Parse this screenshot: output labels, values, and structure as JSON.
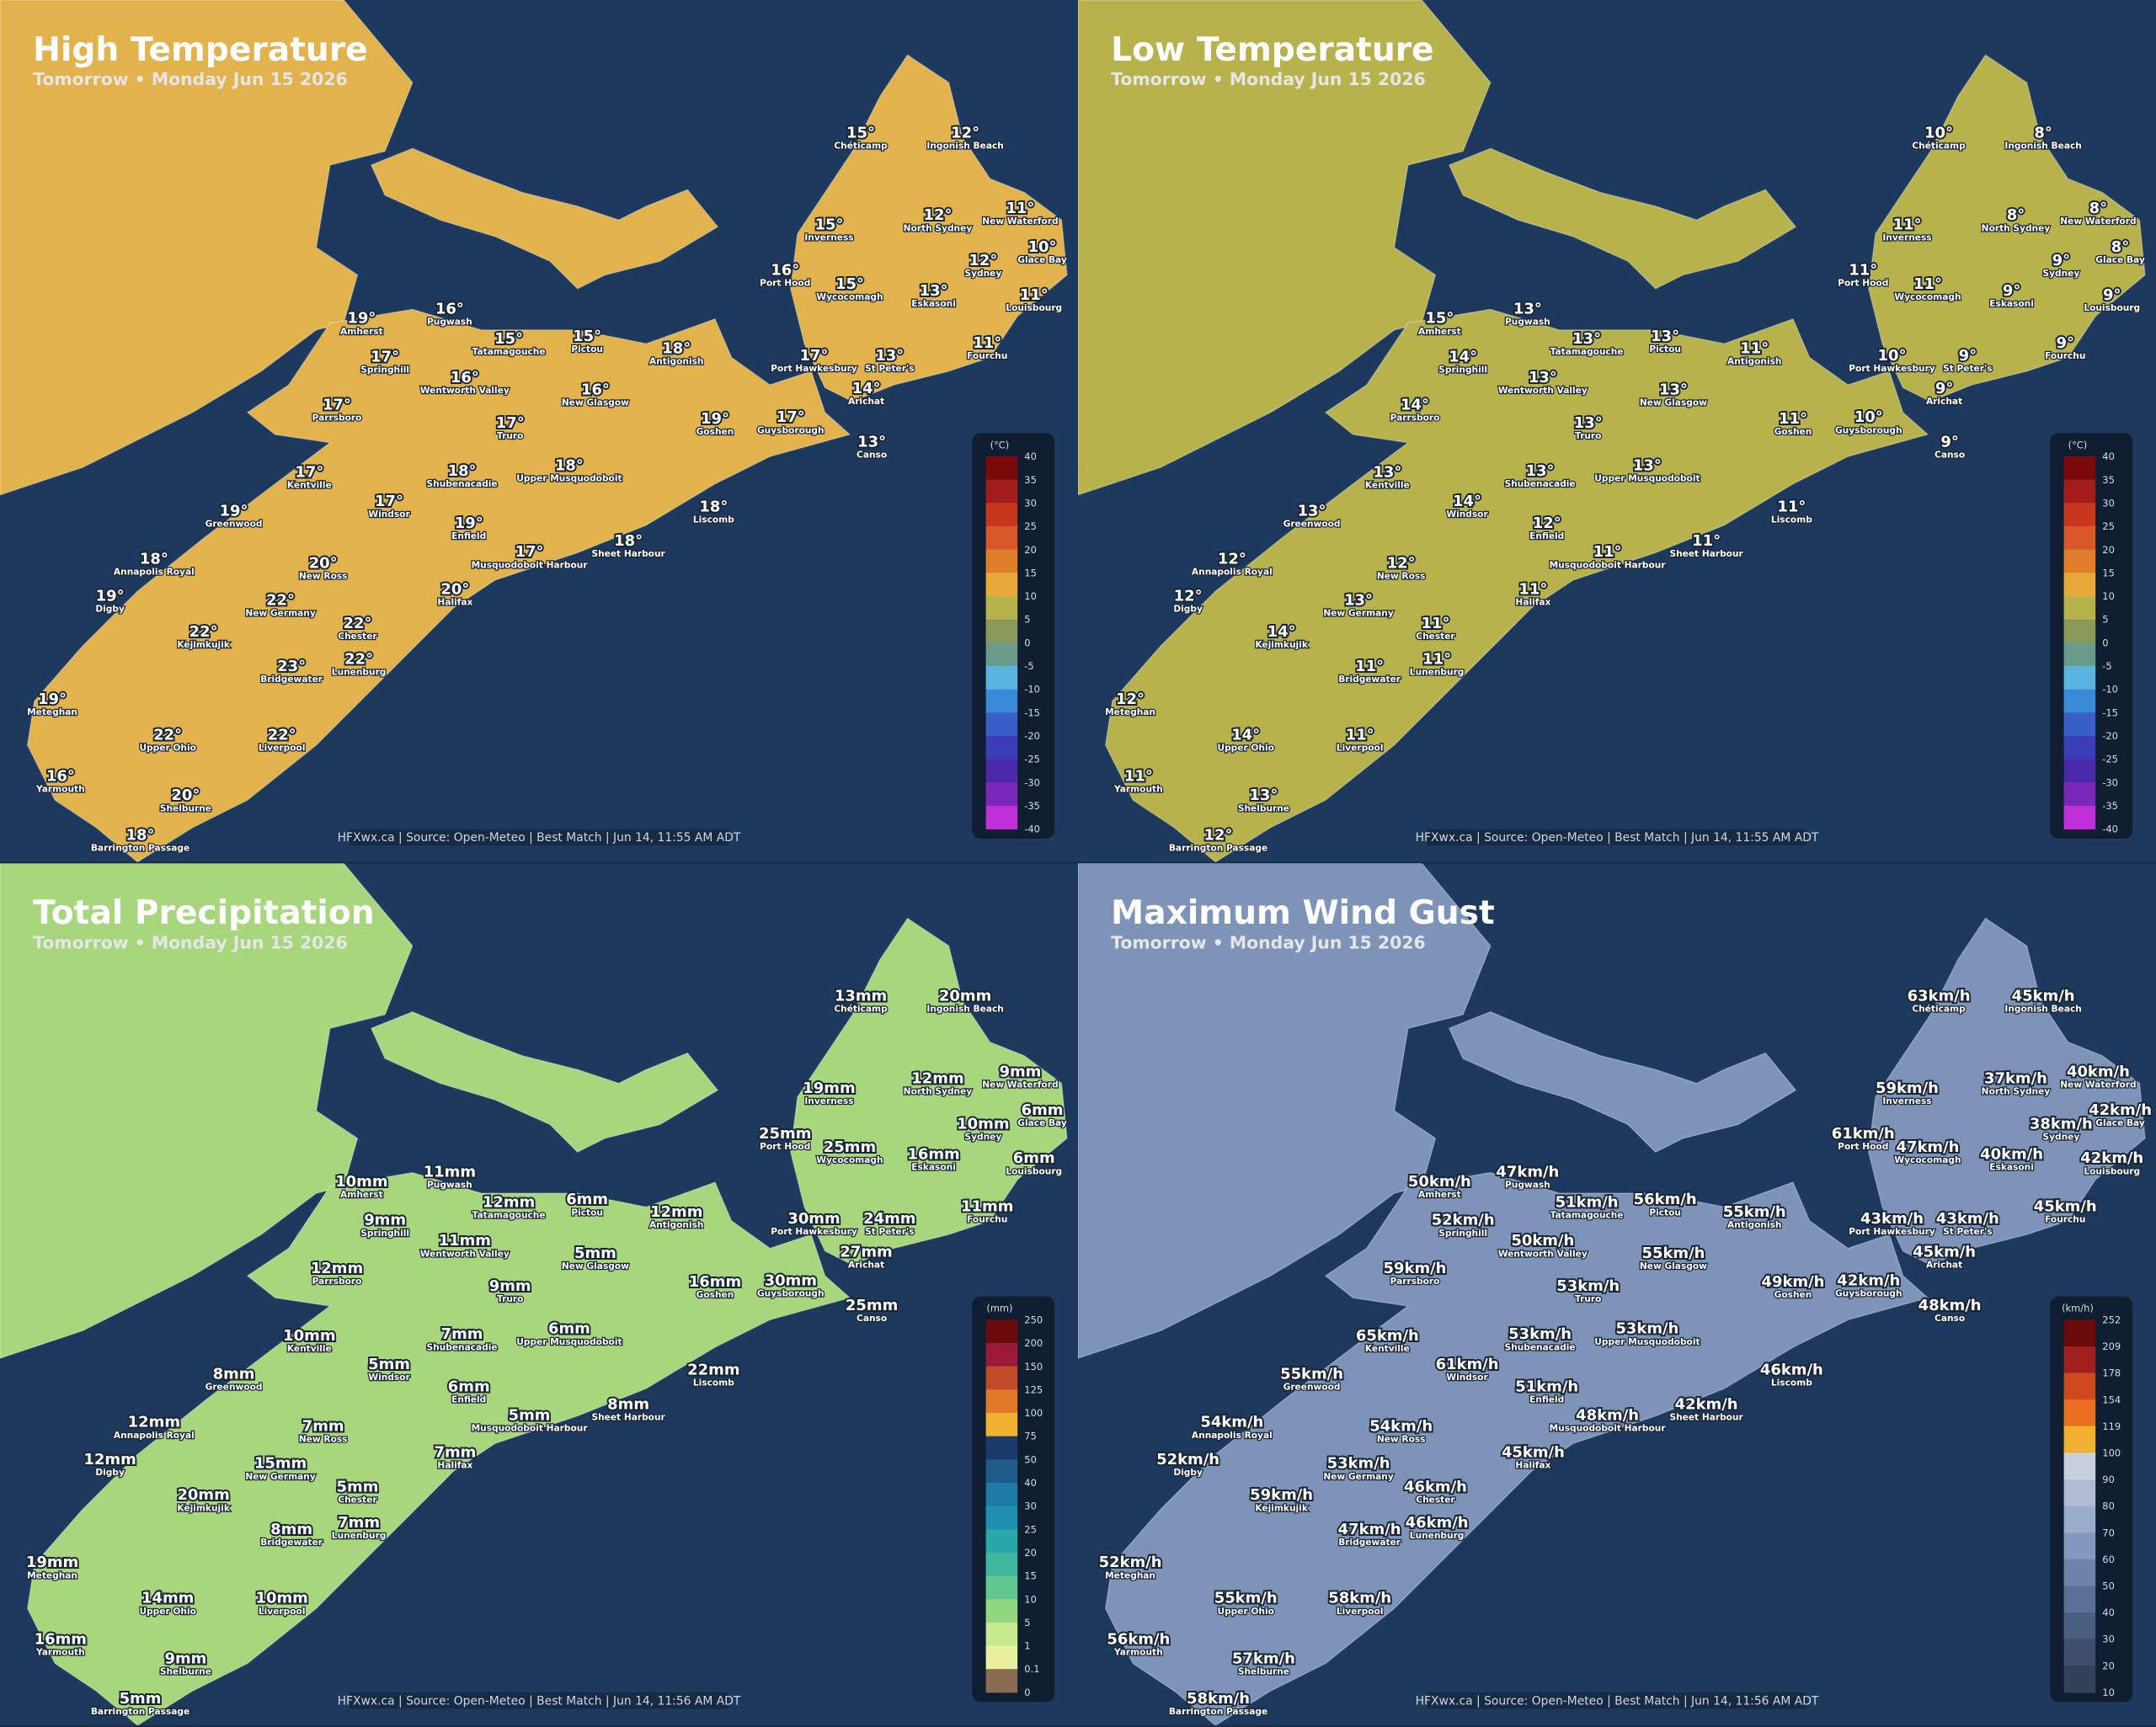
{
  "stations": [
    "Chéticamp",
    "Ingonish Beach",
    "Inverness",
    "North Sydney",
    "New Waterford",
    "Glace Bay",
    "Sydney",
    "Port Hood",
    "Wycocomagh",
    "Eskasoni",
    "Louisbourg",
    "Amherst",
    "Pugwash",
    "Tatamagouche",
    "Pictou",
    "Antigonish",
    "Fourchu",
    "Port Hawkesbury",
    "St Peter's",
    "Springhill",
    "Wentworth Valley",
    "New Glasgow",
    "Arichat",
    "Parrsboro",
    "Goshen",
    "Guysborough",
    "Truro",
    "Canso",
    "Shubenacadie",
    "Upper Musquodoboit",
    "Kentville",
    "Windsor",
    "Liscomb",
    "Greenwood",
    "Enfield",
    "Sheet Harbour",
    "Annapolis Royal",
    "New Ross",
    "Musquodoboit Harbour",
    "Digby",
    "New Germany",
    "Halifax",
    "Chester",
    "Kejimkujik",
    "Lunenburg",
    "Bridgewater",
    "Meteghan",
    "Upper Ohio",
    "Liverpool",
    "Yarmouth",
    "Shelburne",
    "Barrington Passage"
  ],
  "panels": [
    {
      "title": "High Temperature",
      "subtitle": "Tomorrow • Monday Jun 15 2026",
      "footer": "HFXwx.ca | Source: Open-Meteo | Best Match | Jun 14, 11:55 AM ADT",
      "values": [
        "15°",
        "12°",
        "15°",
        "12°",
        "11°",
        "10°",
        "12°",
        "16°",
        "15°",
        "13°",
        "11°",
        "19°",
        "16°",
        "15°",
        "15°",
        "18°",
        "11°",
        "17°",
        "13°",
        "17°",
        "16°",
        "16°",
        "14°",
        "17°",
        "19°",
        "17°",
        "17°",
        "13°",
        "18°",
        "18°",
        "17°",
        "17°",
        "18°",
        "19°",
        "19°",
        "18°",
        "18°",
        "20°",
        "17°",
        "19°",
        "22°",
        "20°",
        "22°",
        "22°",
        "22°",
        "23°",
        "19°",
        "22°",
        "22°",
        "16°",
        "20°",
        "18°"
      ],
      "legend": {
        "unit": "(°C)",
        "labels": [
          "40",
          "35",
          "30",
          "25",
          "20",
          "15",
          "10",
          "5",
          "0",
          "-5",
          "-10",
          "-15",
          "-20",
          "-25",
          "-30",
          "-35",
          "-40"
        ],
        "colors": [
          "#7a0a0a",
          "#a31c1c",
          "#c8361e",
          "#d9582a",
          "#e07f2a",
          "#e8a93a",
          "#b8b24c",
          "#8a9a5a",
          "#6a9a8a",
          "#5ab4e0",
          "#3a8ad8",
          "#3a5ec8",
          "#3a3eb8",
          "#4a2aa8",
          "#7a28b8",
          "#c030d8"
        ]
      }
    },
    {
      "title": "Low Temperature",
      "subtitle": "Tomorrow • Monday Jun 15 2026",
      "footer": "HFXwx.ca | Source: Open-Meteo | Best Match | Jun 14, 11:55 AM ADT",
      "values": [
        "10°",
        "8°",
        "11°",
        "8°",
        "8°",
        "8°",
        "9°",
        "11°",
        "11°",
        "9°",
        "9°",
        "15°",
        "13°",
        "13°",
        "13°",
        "11°",
        "9°",
        "10°",
        "9°",
        "14°",
        "13°",
        "13°",
        "9°",
        "14°",
        "11°",
        "10°",
        "13°",
        "9°",
        "13°",
        "13°",
        "13°",
        "14°",
        "11°",
        "13°",
        "12°",
        "11°",
        "12°",
        "12°",
        "11°",
        "12°",
        "13°",
        "11°",
        "11°",
        "14°",
        "11°",
        "11°",
        "12°",
        "14°",
        "11°",
        "11°",
        "13°",
        "12°"
      ],
      "legend": {
        "unit": "(°C)",
        "labels": [
          "40",
          "35",
          "30",
          "25",
          "20",
          "15",
          "10",
          "5",
          "0",
          "-5",
          "-10",
          "-15",
          "-20",
          "-25",
          "-30",
          "-35",
          "-40"
        ],
        "colors": [
          "#7a0a0a",
          "#a31c1c",
          "#c8361e",
          "#d9582a",
          "#e07f2a",
          "#e8a93a",
          "#b8b24c",
          "#8a9a5a",
          "#6a9a8a",
          "#5ab4e0",
          "#3a8ad8",
          "#3a5ec8",
          "#3a3eb8",
          "#4a2aa8",
          "#7a28b8",
          "#c030d8"
        ]
      }
    },
    {
      "title": "Total Precipitation",
      "subtitle": "Tomorrow • Monday Jun 15 2026",
      "footer": "HFXwx.ca | Source: Open-Meteo | Best Match | Jun 14, 11:56 AM ADT",
      "values": [
        "13mm",
        "20mm",
        "19mm",
        "12mm",
        "9mm",
        "6mm",
        "10mm",
        "25mm",
        "25mm",
        "16mm",
        "6mm",
        "10mm",
        "11mm",
        "12mm",
        "6mm",
        "12mm",
        "11mm",
        "30mm",
        "24mm",
        "9mm",
        "11mm",
        "5mm",
        "27mm",
        "12mm",
        "16mm",
        "30mm",
        "9mm",
        "25mm",
        "7mm",
        "6mm",
        "10mm",
        "5mm",
        "22mm",
        "8mm",
        "6mm",
        "8mm",
        "12mm",
        "7mm",
        "5mm",
        "12mm",
        "15mm",
        "7mm",
        "5mm",
        "20mm",
        "7mm",
        "8mm",
        "19mm",
        "14mm",
        "10mm",
        "16mm",
        "9mm",
        "5mm"
      ],
      "legend": {
        "unit": "(mm)",
        "labels": [
          "250",
          "200",
          "150",
          "125",
          "100",
          "75",
          "50",
          "40",
          "30",
          "25",
          "20",
          "15",
          "10",
          "5",
          "1",
          "0.1",
          "0"
        ],
        "colors": [
          "#6a0a0a",
          "#9a1a3a",
          "#c04a2a",
          "#e07a2a",
          "#f0b030",
          "#1a3a6a",
          "#1e5a8a",
          "#1e7aa8",
          "#2090b0",
          "#28a8a8",
          "#40b8a0",
          "#60c890",
          "#90d880",
          "#c8e890",
          "#e8f0a0",
          "#8a6a50"
        ]
      }
    },
    {
      "title": "Maximum Wind Gust",
      "subtitle": "Tomorrow • Monday Jun 15 2026",
      "footer": "HFXwx.ca | Source: Open-Meteo | Best Match | Jun 14, 11:56 AM ADT",
      "values": [
        "63km/h",
        "45km/h",
        "59km/h",
        "37km/h",
        "40km/h",
        "42km/h",
        "38km/h",
        "61km/h",
        "47km/h",
        "40km/h",
        "42km/h",
        "50km/h",
        "47km/h",
        "51km/h",
        "56km/h",
        "55km/h",
        "45km/h",
        "43km/h",
        "43km/h",
        "52km/h",
        "50km/h",
        "55km/h",
        "45km/h",
        "59km/h",
        "49km/h",
        "42km/h",
        "53km/h",
        "48km/h",
        "53km/h",
        "53km/h",
        "65km/h",
        "61km/h",
        "46km/h",
        "55km/h",
        "51km/h",
        "42km/h",
        "54km/h",
        "54km/h",
        "48km/h",
        "52km/h",
        "53km/h",
        "45km/h",
        "46km/h",
        "59km/h",
        "46km/h",
        "47km/h",
        "52km/h",
        "55km/h",
        "58km/h",
        "56km/h",
        "57km/h",
        "58km/h"
      ],
      "legend": {
        "unit": "(km/h)",
        "labels": [
          "252",
          "209",
          "178",
          "154",
          "119",
          "100",
          "90",
          "80",
          "70",
          "60",
          "50",
          "40",
          "30",
          "20",
          "10"
        ],
        "colors": [
          "#6a0a0a",
          "#a02020",
          "#d04a20",
          "#e87020",
          "#f0b030",
          "#c8d0e0",
          "#b0bcd4",
          "#9aaccc",
          "#8298bc",
          "#6e84a8",
          "#5a7094",
          "#4a5e80",
          "#3e4e6c",
          "#334258"
        ]
      }
    }
  ]
}
